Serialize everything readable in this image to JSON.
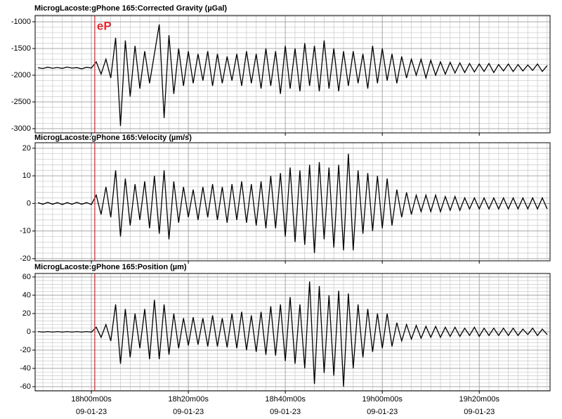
{
  "chart_data": [
    {
      "type": "line",
      "title": "MicrogLacoste:gPhone 165:Corrected Gravity (µGal)",
      "color": "#000000",
      "grid": true,
      "minor_grid": true,
      "xlim": [
        -11.6,
        94.6
      ],
      "xticks": [
        0,
        20,
        40,
        60,
        80
      ],
      "ylim": [
        -3079,
        -882
      ],
      "yticks": [
        -1000,
        -1500,
        -2000,
        -2500,
        -3000
      ],
      "annotations": [
        {
          "x": 0.7,
          "label": "eP",
          "color": "#e8282e"
        }
      ],
      "x": [
        -11,
        -10,
        -9,
        -8,
        -7,
        -6,
        -5,
        -4,
        -3,
        -2,
        -1,
        0,
        1,
        2,
        3,
        4,
        5,
        6,
        7,
        8,
        9,
        10,
        11,
        12,
        13,
        14,
        15,
        16,
        17,
        18,
        19,
        20,
        21,
        22,
        23,
        24,
        25,
        26,
        27,
        28,
        29,
        30,
        31,
        32,
        33,
        34,
        35,
        36,
        37,
        38,
        39,
        40,
        41,
        42,
        43,
        44,
        45,
        46,
        47,
        48,
        49,
        50,
        51,
        52,
        53,
        54,
        55,
        56,
        57,
        58,
        59,
        60,
        61,
        62,
        63,
        64,
        65,
        66,
        67,
        68,
        69,
        70,
        71,
        72,
        73,
        74,
        75,
        76,
        77,
        78,
        79,
        80,
        81,
        82,
        83,
        84,
        85,
        86,
        87,
        88,
        89,
        90,
        91,
        92,
        93,
        94
      ],
      "values": [
        -1860,
        -1875,
        -1850,
        -1870,
        -1855,
        -1872,
        -1848,
        -1868,
        -1858,
        -1880,
        -1852,
        -1866,
        -1750,
        -1980,
        -1700,
        -2050,
        -1300,
        -2950,
        -1350,
        -2400,
        -1450,
        -2250,
        -1550,
        -2150,
        -1600,
        -1050,
        -2800,
        -1250,
        -2350,
        -1500,
        -2200,
        -1550,
        -2150,
        -1600,
        -2100,
        -1550,
        -2200,
        -1600,
        -2150,
        -1650,
        -2100,
        -1600,
        -2200,
        -1550,
        -2150,
        -1600,
        -2250,
        -1500,
        -2200,
        -1550,
        -2350,
        -1450,
        -2250,
        -1500,
        -2300,
        -1400,
        -2200,
        -1450,
        -2300,
        -1350,
        -2250,
        -1500,
        -2300,
        -1550,
        -2200,
        -1550,
        -2150,
        -1600,
        -2250,
        -1450,
        -2150,
        -1500,
        -2100,
        -1600,
        -2150,
        -1650,
        -2050,
        -1700,
        -2000,
        -1700,
        -2050,
        -1720,
        -2000,
        -1750,
        -1980,
        -1760,
        -1960,
        -1770,
        -1950,
        -1780,
        -1940,
        -1790,
        -1930,
        -1780,
        -1950,
        -1800,
        -1920,
        -1790,
        -1930,
        -1800,
        -1920,
        -1810,
        -1910,
        -1790,
        -1930,
        -1820
      ]
    },
    {
      "type": "line",
      "title": "MicrogLacoste:gPhone 165:Velocity (µm/s)",
      "color": "#000000",
      "grid": true,
      "minor_grid": true,
      "xlim": [
        -11.6,
        94.6
      ],
      "xticks": [
        0,
        20,
        40,
        60,
        80
      ],
      "ylim": [
        -20.8,
        22
      ],
      "yticks": [
        20,
        10,
        0,
        -10,
        -20
      ],
      "x": [
        -11,
        -10,
        -9,
        -8,
        -7,
        -6,
        -5,
        -4,
        -3,
        -2,
        -1,
        0,
        1,
        2,
        3,
        4,
        5,
        6,
        7,
        8,
        9,
        10,
        11,
        12,
        13,
        14,
        15,
        16,
        17,
        18,
        19,
        20,
        21,
        22,
        23,
        24,
        25,
        26,
        27,
        28,
        29,
        30,
        31,
        32,
        33,
        34,
        35,
        36,
        37,
        38,
        39,
        40,
        41,
        42,
        43,
        44,
        45,
        46,
        47,
        48,
        49,
        50,
        51,
        52,
        53,
        54,
        55,
        56,
        57,
        58,
        59,
        60,
        61,
        62,
        63,
        64,
        65,
        66,
        67,
        68,
        69,
        70,
        71,
        72,
        73,
        74,
        75,
        76,
        77,
        78,
        79,
        80,
        81,
        82,
        83,
        84,
        85,
        86,
        87,
        88,
        89,
        90,
        91,
        92,
        93,
        94
      ],
      "values": [
        0.3,
        -0.3,
        0.4,
        -0.3,
        0.3,
        -0.4,
        0.3,
        -0.3,
        0.4,
        -0.3,
        0.3,
        -0.4,
        3,
        -4,
        6,
        -5,
        12,
        -12,
        9,
        -8,
        7,
        -6,
        8,
        -9,
        10,
        -11,
        12,
        -13,
        8,
        -7,
        6,
        -5,
        5,
        -6,
        6,
        -5,
        7,
        -6,
        6,
        -7,
        7,
        -6,
        8,
        -7,
        7,
        -8,
        8,
        -9,
        10,
        -9,
        11,
        -12,
        13,
        -14,
        12,
        -15,
        14,
        -18,
        15,
        -13,
        13,
        -16,
        14,
        -17,
        18,
        -17,
        12,
        -11,
        11,
        -10,
        10,
        -9,
        9,
        -8,
        5,
        -5,
        4,
        -4,
        3,
        -3,
        3,
        -3,
        3,
        -3,
        2.5,
        -2.5,
        2.5,
        -2.5,
        2,
        -2,
        2,
        -2,
        2,
        -2,
        2,
        -2,
        2,
        -2,
        2,
        -2,
        2,
        -2,
        2,
        -2,
        2,
        -2
      ]
    },
    {
      "type": "line",
      "title": "MicrogLacoste:gPhone 165:Position (µm)",
      "color": "#000000",
      "grid": true,
      "minor_grid": true,
      "xlim": [
        -11.6,
        94.6
      ],
      "xticks": [
        {
          "value": 0,
          "label": "18h00m00s",
          "date": "09-01-23"
        },
        {
          "value": 20,
          "label": "18h20m00s",
          "date": "09-01-23"
        },
        {
          "value": 40,
          "label": "18h40m00s",
          "date": "09-01-23"
        },
        {
          "value": 60,
          "label": "19h00m00s",
          "date": "09-01-23"
        },
        {
          "value": 80,
          "label": "19h20m00s",
          "date": "09-01-23"
        }
      ],
      "ylim": [
        -64.6,
        63.8
      ],
      "yticks": [
        60,
        40,
        20,
        0,
        -20,
        -40,
        -60
      ],
      "x": [
        -11,
        -10,
        -9,
        -8,
        -7,
        -6,
        -5,
        -4,
        -3,
        -2,
        -1,
        0,
        1,
        2,
        3,
        4,
        5,
        6,
        7,
        8,
        9,
        10,
        11,
        12,
        13,
        14,
        15,
        16,
        17,
        18,
        19,
        20,
        21,
        22,
        23,
        24,
        25,
        26,
        27,
        28,
        29,
        30,
        31,
        32,
        33,
        34,
        35,
        36,
        37,
        38,
        39,
        40,
        41,
        42,
        43,
        44,
        45,
        46,
        47,
        48,
        49,
        50,
        51,
        52,
        53,
        54,
        55,
        56,
        57,
        58,
        59,
        60,
        61,
        62,
        63,
        64,
        65,
        66,
        67,
        68,
        69,
        70,
        71,
        72,
        73,
        74,
        75,
        76,
        77,
        78,
        79,
        80,
        81,
        82,
        83,
        84,
        85,
        86,
        87,
        88,
        89,
        90,
        91,
        92,
        93,
        94
      ],
      "values": [
        0.3,
        -0.3,
        0.3,
        -0.3,
        0.3,
        -0.3,
        0.3,
        -0.3,
        0.3,
        -0.3,
        0.3,
        -0.3,
        5,
        -6,
        8,
        -10,
        30,
        -35,
        25,
        -28,
        20,
        -18,
        25,
        -30,
        35,
        -30,
        30,
        -25,
        20,
        -18,
        15,
        -15,
        16,
        -14,
        15,
        -16,
        18,
        -16,
        15,
        -17,
        20,
        -18,
        22,
        -20,
        18,
        -22,
        22,
        -25,
        28,
        -26,
        30,
        -32,
        38,
        -35,
        30,
        -40,
        55,
        -57,
        50,
        -45,
        40,
        -48,
        45,
        -60,
        42,
        -40,
        30,
        -28,
        25,
        -22,
        20,
        -18,
        20,
        -16,
        10,
        -10,
        8,
        -8,
        7,
        -7,
        6,
        -6,
        6,
        -6,
        5,
        -5,
        5,
        -5,
        4,
        -4,
        5,
        -5,
        4,
        -4,
        4,
        -4,
        4,
        -4,
        4,
        -4,
        3,
        -3,
        4,
        -4,
        3,
        -3
      ]
    }
  ]
}
